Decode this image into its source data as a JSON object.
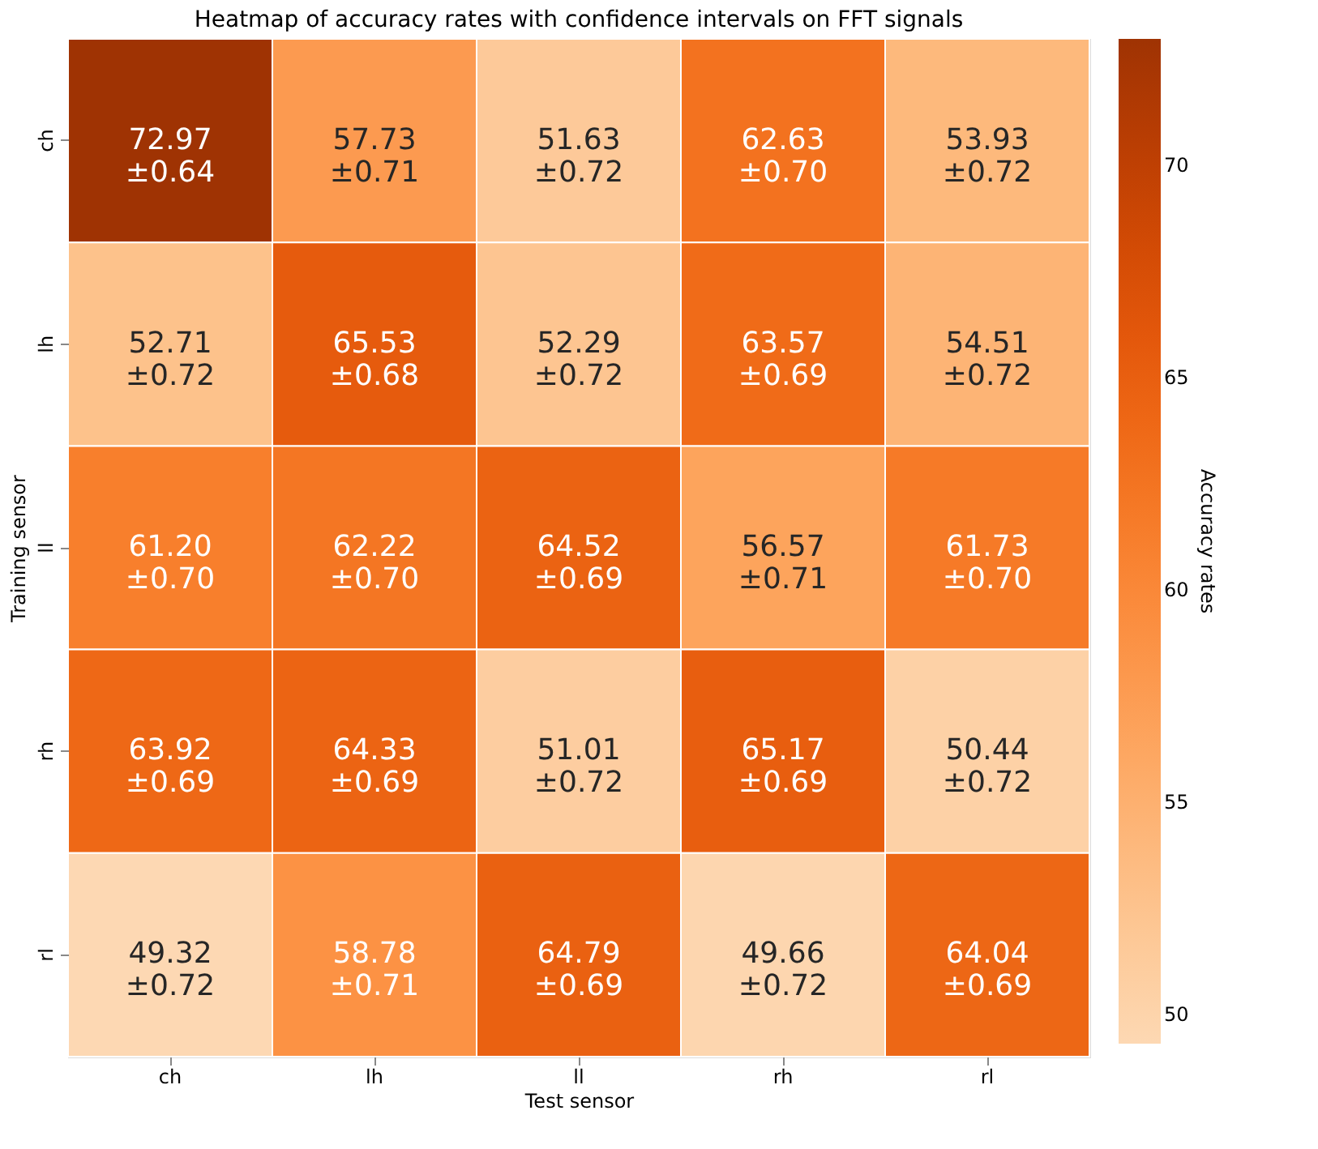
{
  "chart_data": {
    "type": "heatmap",
    "title": "Heatmap of accuracy rates with confidence intervals on FFT signals",
    "xlabel": "Test sensor",
    "ylabel": "Training sensor",
    "clabel": "Accuracy rates",
    "categories": [
      "ch",
      "lh",
      "ll",
      "rh",
      "rl"
    ],
    "y_categories": [
      "ch",
      "lh",
      "ll",
      "rh",
      "rl"
    ],
    "cells": [
      [
        72.97,
        57.73,
        51.63,
        62.63,
        53.93
      ],
      [
        52.71,
        65.53,
        52.29,
        63.57,
        54.51
      ],
      [
        61.2,
        62.22,
        64.52,
        56.57,
        61.73
      ],
      [
        63.92,
        64.33,
        51.01,
        65.17,
        50.44
      ],
      [
        49.32,
        58.78,
        64.79,
        49.66,
        64.04
      ]
    ],
    "cell_labels": [
      [
        "72.97\n±0.64",
        "57.73\n±0.71",
        "51.63\n±0.72",
        "62.63\n±0.70",
        "53.93\n±0.72"
      ],
      [
        "52.71\n±0.72",
        "65.53\n±0.68",
        "52.29\n±0.72",
        "63.57\n±0.69",
        "54.51\n±0.72"
      ],
      [
        "61.20\n±0.70",
        "62.22\n±0.70",
        "64.52\n±0.69",
        "56.57\n±0.71",
        "61.73\n±0.70"
      ],
      [
        "63.92\n±0.69",
        "64.33\n±0.69",
        "51.01\n±0.72",
        "65.17\n±0.69",
        "50.44\n±0.72"
      ],
      [
        "49.32\n±0.72",
        "58.78\n±0.71",
        "64.79\n±0.69",
        "49.66\n±0.72",
        "64.04\n±0.69"
      ]
    ],
    "clim": [
      49.32,
      72.97
    ],
    "cticks": [
      50,
      55,
      60,
      65,
      70
    ]
  }
}
